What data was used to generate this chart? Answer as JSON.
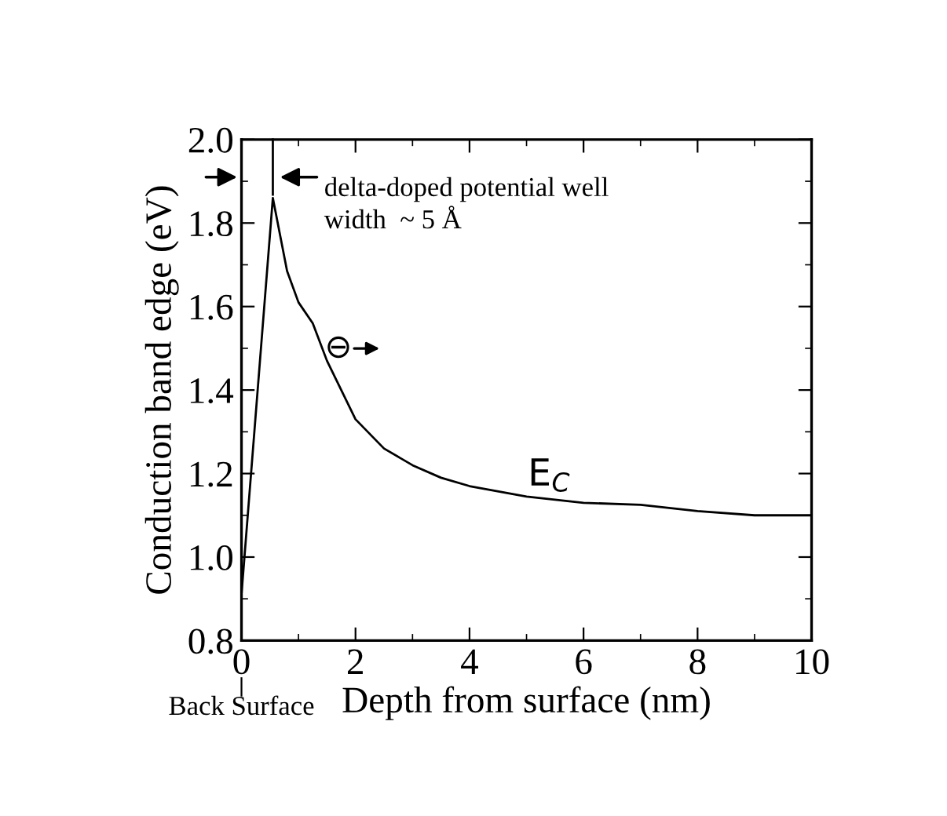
{
  "chart_data": {
    "type": "line",
    "xlabel": "Depth from surface (nm)",
    "ylabel": "Conduction band edge (eV)",
    "x": [
      0,
      0.55,
      0.8,
      1.0,
      1.25,
      1.5,
      1.75,
      2.0,
      2.5,
      3.0,
      3.5,
      4.0,
      5.0,
      6.0,
      7.0,
      8.0,
      9.0,
      10.0
    ],
    "series": [
      {
        "color": "#000000",
        "values": [
          0.91,
          1.86,
          1.685,
          1.61,
          1.56,
          1.47,
          1.4,
          1.33,
          1.26,
          1.22,
          1.19,
          1.17,
          1.145,
          1.13,
          1.125,
          1.11,
          1.1,
          1.1
        ]
      }
    ],
    "xlim": [
      0,
      10
    ],
    "ylim": [
      0.8,
      2.0
    ],
    "xticks": [
      0,
      2,
      4,
      6,
      8,
      10
    ],
    "yticks": [
      {
        "value": 0.8,
        "label": "0.8"
      },
      {
        "value": 1.0,
        "label": "1.0"
      },
      {
        "value": 1.2,
        "label": "1.2"
      },
      {
        "value": 1.4,
        "label": "1.4"
      },
      {
        "value": 1.6,
        "label": "1.6"
      },
      {
        "value": 1.8,
        "label": "1.8"
      },
      {
        "value": 2.0,
        "label": "2.0"
      }
    ],
    "grid": false,
    "marker": "none",
    "line_style": "solid",
    "annotations": [
      "delta-doped potential well\nwidth  ~ 5 Å",
      "⊖",
      "E$_{C}$",
      "Back Surface"
    ]
  }
}
